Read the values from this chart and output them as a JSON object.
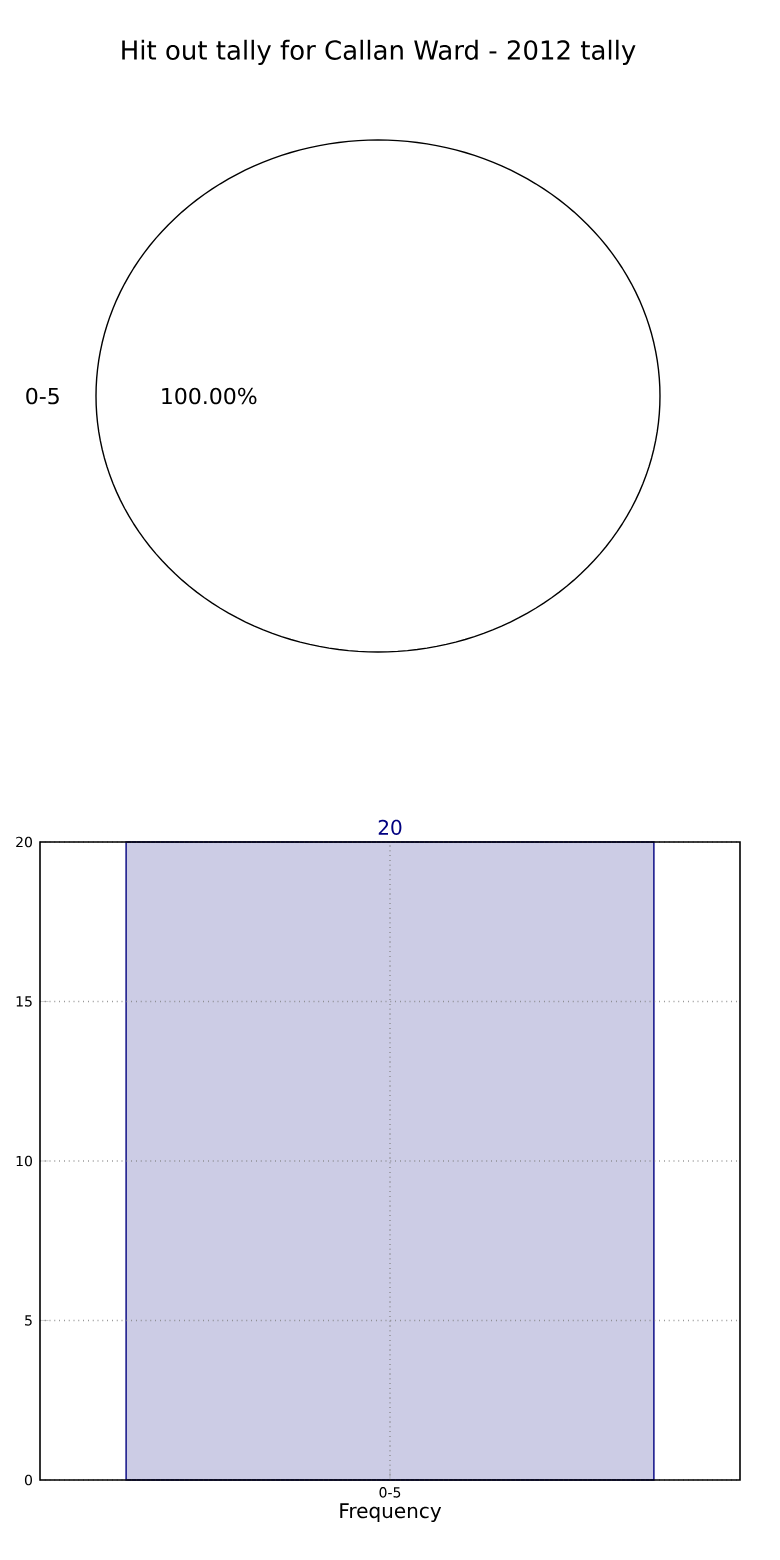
{
  "chart_data": [
    {
      "type": "pie",
      "title": "Hit out tally for Callan Ward - 2012 tally",
      "categories": [
        "0-5"
      ],
      "values": [
        100
      ],
      "colors": [
        "#ffffff"
      ],
      "value_labels": [
        "100.00%"
      ]
    },
    {
      "type": "bar",
      "categories": [
        "0-5"
      ],
      "values": [
        20
      ],
      "color": "#cccce5",
      "xlabel": "Frequency",
      "ylim": [
        0,
        20
      ],
      "yticks": [
        0,
        5,
        10,
        15,
        20
      ],
      "grid": true,
      "data_labels": true
    }
  ]
}
